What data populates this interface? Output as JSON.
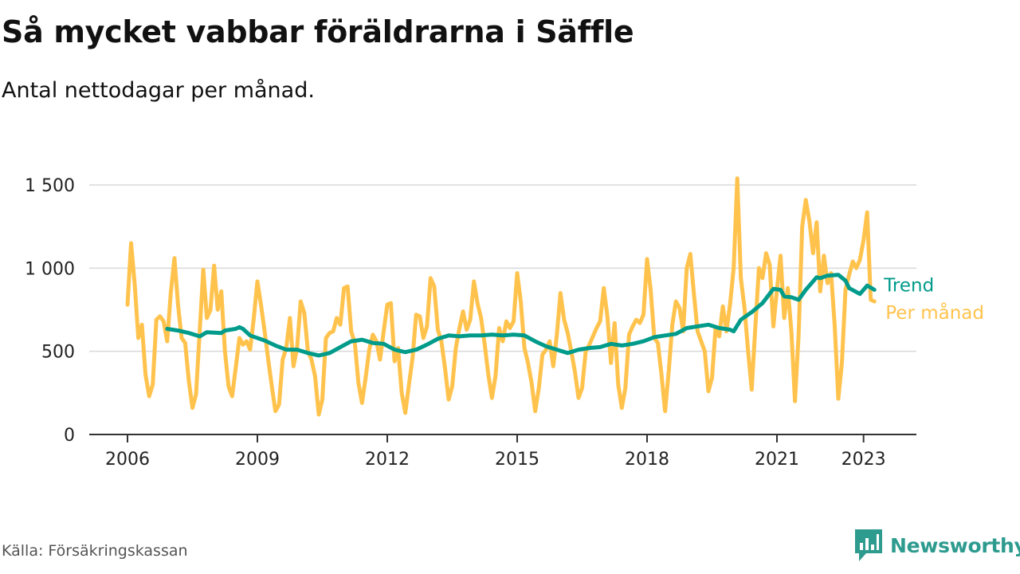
{
  "header": {
    "title": "Så mycket vabbar föräldrarna i Säffle",
    "subtitle": "Antal nettodagar per månad."
  },
  "footer": {
    "source": "Källa: Försäkringskassan",
    "brand": "Newsworthy"
  },
  "colors": {
    "monthly": "#ffc34d",
    "trend": "#009b8a",
    "grid": "#d9d9d9",
    "axis": "#333333",
    "brand": "#2e9b8f"
  },
  "chart_data": {
    "type": "line",
    "title": "Så mycket vabbar föräldrarna i Säffle",
    "subtitle": "Antal nettodagar per månad.",
    "xlim": [
      "2006-01",
      "2023-12"
    ],
    "ylim": [
      0,
      1550
    ],
    "y_ticks": [
      {
        "value": 0,
        "label": "0"
      },
      {
        "value": 500,
        "label": "500"
      },
      {
        "value": 1000,
        "label": "1 000"
      },
      {
        "value": 1500,
        "label": "1 500"
      }
    ],
    "x_ticks": [
      {
        "date": "2006-01",
        "label": "2006"
      },
      {
        "date": "2009-01",
        "label": "2009"
      },
      {
        "date": "2012-01",
        "label": "2012"
      },
      {
        "date": "2015-01",
        "label": "2015"
      },
      {
        "date": "2018-01",
        "label": "2018"
      },
      {
        "date": "2021-01",
        "label": "2021"
      },
      {
        "date": "2023-01",
        "label": "2023"
      }
    ],
    "grid": true,
    "legend": "end-of-line labels",
    "series": [
      {
        "name": "Per månad",
        "color": "#ffc34d",
        "points": [
          [
            "2006-01",
            780
          ],
          [
            "2006-02",
            1150
          ],
          [
            "2006-03",
            900
          ],
          [
            "2006-04",
            580
          ],
          [
            "2006-05",
            660
          ],
          [
            "2006-06",
            360
          ],
          [
            "2006-07",
            230
          ],
          [
            "2006-08",
            300
          ],
          [
            "2006-09",
            690
          ],
          [
            "2006-10",
            710
          ],
          [
            "2006-11",
            680
          ],
          [
            "2006-12",
            560
          ],
          [
            "2007-01",
            850
          ],
          [
            "2007-02",
            1060
          ],
          [
            "2007-03",
            780
          ],
          [
            "2007-04",
            580
          ],
          [
            "2007-05",
            550
          ],
          [
            "2007-06",
            320
          ],
          [
            "2007-07",
            160
          ],
          [
            "2007-08",
            240
          ],
          [
            "2007-09",
            620
          ],
          [
            "2007-10",
            990
          ],
          [
            "2007-11",
            700
          ],
          [
            "2007-12",
            750
          ],
          [
            "2008-01",
            1015
          ],
          [
            "2008-02",
            750
          ],
          [
            "2008-03",
            860
          ],
          [
            "2008-04",
            500
          ],
          [
            "2008-05",
            290
          ],
          [
            "2008-06",
            230
          ],
          [
            "2008-07",
            400
          ],
          [
            "2008-08",
            580
          ],
          [
            "2008-09",
            540
          ],
          [
            "2008-10",
            560
          ],
          [
            "2008-11",
            510
          ],
          [
            "2008-12",
            700
          ],
          [
            "2009-01",
            920
          ],
          [
            "2009-02",
            780
          ],
          [
            "2009-03",
            620
          ],
          [
            "2009-04",
            450
          ],
          [
            "2009-05",
            290
          ],
          [
            "2009-06",
            140
          ],
          [
            "2009-07",
            180
          ],
          [
            "2009-08",
            450
          ],
          [
            "2009-09",
            520
          ],
          [
            "2009-10",
            700
          ],
          [
            "2009-11",
            410
          ],
          [
            "2009-12",
            520
          ],
          [
            "2010-01",
            800
          ],
          [
            "2010-02",
            730
          ],
          [
            "2010-03",
            500
          ],
          [
            "2010-04",
            450
          ],
          [
            "2010-05",
            350
          ],
          [
            "2010-06",
            120
          ],
          [
            "2010-07",
            210
          ],
          [
            "2010-08",
            580
          ],
          [
            "2010-09",
            610
          ],
          [
            "2010-10",
            620
          ],
          [
            "2010-11",
            700
          ],
          [
            "2010-12",
            660
          ],
          [
            "2011-01",
            880
          ],
          [
            "2011-02",
            890
          ],
          [
            "2011-03",
            620
          ],
          [
            "2011-04",
            550
          ],
          [
            "2011-05",
            310
          ],
          [
            "2011-06",
            190
          ],
          [
            "2011-07",
            340
          ],
          [
            "2011-08",
            510
          ],
          [
            "2011-09",
            600
          ],
          [
            "2011-10",
            560
          ],
          [
            "2011-11",
            450
          ],
          [
            "2011-12",
            620
          ],
          [
            "2012-01",
            780
          ],
          [
            "2012-02",
            790
          ],
          [
            "2012-03",
            440
          ],
          [
            "2012-04",
            520
          ],
          [
            "2012-05",
            250
          ],
          [
            "2012-06",
            130
          ],
          [
            "2012-07",
            300
          ],
          [
            "2012-08",
            460
          ],
          [
            "2012-09",
            720
          ],
          [
            "2012-10",
            710
          ],
          [
            "2012-11",
            580
          ],
          [
            "2012-12",
            650
          ],
          [
            "2013-01",
            940
          ],
          [
            "2013-02",
            890
          ],
          [
            "2013-03",
            630
          ],
          [
            "2013-04",
            560
          ],
          [
            "2013-05",
            400
          ],
          [
            "2013-06",
            210
          ],
          [
            "2013-07",
            290
          ],
          [
            "2013-08",
            520
          ],
          [
            "2013-09",
            640
          ],
          [
            "2013-10",
            740
          ],
          [
            "2013-11",
            630
          ],
          [
            "2013-12",
            690
          ],
          [
            "2014-01",
            920
          ],
          [
            "2014-02",
            790
          ],
          [
            "2014-03",
            700
          ],
          [
            "2014-04",
            540
          ],
          [
            "2014-05",
            360
          ],
          [
            "2014-06",
            220
          ],
          [
            "2014-07",
            350
          ],
          [
            "2014-08",
            640
          ],
          [
            "2014-09",
            560
          ],
          [
            "2014-10",
            680
          ],
          [
            "2014-11",
            640
          ],
          [
            "2014-12",
            680
          ],
          [
            "2015-01",
            970
          ],
          [
            "2015-02",
            800
          ],
          [
            "2015-03",
            520
          ],
          [
            "2015-04",
            430
          ],
          [
            "2015-05",
            310
          ],
          [
            "2015-06",
            140
          ],
          [
            "2015-07",
            280
          ],
          [
            "2015-08",
            480
          ],
          [
            "2015-09",
            510
          ],
          [
            "2015-10",
            560
          ],
          [
            "2015-11",
            410
          ],
          [
            "2015-12",
            600
          ],
          [
            "2016-01",
            850
          ],
          [
            "2016-02",
            690
          ],
          [
            "2016-03",
            610
          ],
          [
            "2016-04",
            500
          ],
          [
            "2016-05",
            380
          ],
          [
            "2016-06",
            220
          ],
          [
            "2016-07",
            280
          ],
          [
            "2016-08",
            500
          ],
          [
            "2016-09",
            540
          ],
          [
            "2016-10",
            590
          ],
          [
            "2016-11",
            640
          ],
          [
            "2016-12",
            680
          ],
          [
            "2017-01",
            880
          ],
          [
            "2017-02",
            710
          ],
          [
            "2017-03",
            430
          ],
          [
            "2017-04",
            670
          ],
          [
            "2017-05",
            300
          ],
          [
            "2017-06",
            160
          ],
          [
            "2017-07",
            280
          ],
          [
            "2017-08",
            600
          ],
          [
            "2017-09",
            650
          ],
          [
            "2017-10",
            690
          ],
          [
            "2017-11",
            670
          ],
          [
            "2017-12",
            720
          ],
          [
            "2018-01",
            1055
          ],
          [
            "2018-02",
            870
          ],
          [
            "2018-03",
            580
          ],
          [
            "2018-04",
            550
          ],
          [
            "2018-05",
            360
          ],
          [
            "2018-06",
            140
          ],
          [
            "2018-07",
            380
          ],
          [
            "2018-08",
            660
          ],
          [
            "2018-09",
            800
          ],
          [
            "2018-10",
            760
          ],
          [
            "2018-11",
            620
          ],
          [
            "2018-12",
            1000
          ],
          [
            "2019-01",
            1085
          ],
          [
            "2019-02",
            840
          ],
          [
            "2019-03",
            620
          ],
          [
            "2019-04",
            560
          ],
          [
            "2019-05",
            500
          ],
          [
            "2019-06",
            260
          ],
          [
            "2019-07",
            340
          ],
          [
            "2019-08",
            640
          ],
          [
            "2019-09",
            590
          ],
          [
            "2019-10",
            770
          ],
          [
            "2019-11",
            620
          ],
          [
            "2019-12",
            780
          ],
          [
            "2020-01",
            1000
          ],
          [
            "2020-02",
            1540
          ],
          [
            "2020-03",
            940
          ],
          [
            "2020-04",
            760
          ],
          [
            "2020-05",
            500
          ],
          [
            "2020-06",
            270
          ],
          [
            "2020-07",
            640
          ],
          [
            "2020-08",
            1000
          ],
          [
            "2020-09",
            940
          ],
          [
            "2020-10",
            1090
          ],
          [
            "2020-11",
            1020
          ],
          [
            "2020-12",
            650
          ],
          [
            "2021-01",
            870
          ],
          [
            "2021-02",
            1075
          ],
          [
            "2021-03",
            700
          ],
          [
            "2021-04",
            880
          ],
          [
            "2021-05",
            620
          ],
          [
            "2021-06",
            200
          ],
          [
            "2021-07",
            600
          ],
          [
            "2021-08",
            1250
          ],
          [
            "2021-09",
            1410
          ],
          [
            "2021-10",
            1280
          ],
          [
            "2021-11",
            1090
          ],
          [
            "2021-12",
            1275
          ],
          [
            "2022-01",
            860
          ],
          [
            "2022-02",
            1075
          ],
          [
            "2022-03",
            910
          ],
          [
            "2022-04",
            970
          ],
          [
            "2022-05",
            660
          ],
          [
            "2022-06",
            215
          ],
          [
            "2022-07",
            430
          ],
          [
            "2022-08",
            870
          ],
          [
            "2022-09",
            960
          ],
          [
            "2022-10",
            1040
          ],
          [
            "2022-11",
            1000
          ],
          [
            "2022-12",
            1050
          ],
          [
            "2023-01",
            1170
          ],
          [
            "2023-02",
            1335
          ],
          [
            "2023-03",
            810
          ],
          [
            "2023-04",
            800
          ]
        ]
      },
      {
        "name": "Trend",
        "color": "#009b8a",
        "points": [
          [
            "2006-12",
            635
          ],
          [
            "2007-03",
            625
          ],
          [
            "2007-06",
            610
          ],
          [
            "2007-09",
            590
          ],
          [
            "2007-11",
            615
          ],
          [
            "2008-03",
            610
          ],
          [
            "2008-04",
            625
          ],
          [
            "2008-07",
            635
          ],
          [
            "2008-08",
            645
          ],
          [
            "2008-09",
            635
          ],
          [
            "2008-11",
            595
          ],
          [
            "2009-03",
            565
          ],
          [
            "2009-06",
            535
          ],
          [
            "2009-09",
            510
          ],
          [
            "2009-12",
            510
          ],
          [
            "2010-03",
            490
          ],
          [
            "2010-06",
            475
          ],
          [
            "2010-09",
            490
          ],
          [
            "2010-12",
            525
          ],
          [
            "2011-03",
            560
          ],
          [
            "2011-06",
            570
          ],
          [
            "2011-09",
            550
          ],
          [
            "2011-12",
            545
          ],
          [
            "2012-03",
            510
          ],
          [
            "2012-06",
            495
          ],
          [
            "2012-09",
            510
          ],
          [
            "2012-12",
            540
          ],
          [
            "2013-03",
            575
          ],
          [
            "2013-06",
            595
          ],
          [
            "2013-09",
            590
          ],
          [
            "2013-12",
            595
          ],
          [
            "2014-03",
            595
          ],
          [
            "2014-06",
            600
          ],
          [
            "2014-09",
            595
          ],
          [
            "2014-12",
            600
          ],
          [
            "2015-03",
            595
          ],
          [
            "2015-06",
            560
          ],
          [
            "2015-09",
            530
          ],
          [
            "2015-12",
            510
          ],
          [
            "2016-03",
            490
          ],
          [
            "2016-06",
            510
          ],
          [
            "2016-09",
            520
          ],
          [
            "2016-12",
            525
          ],
          [
            "2017-03",
            545
          ],
          [
            "2017-06",
            535
          ],
          [
            "2017-09",
            545
          ],
          [
            "2017-12",
            560
          ],
          [
            "2018-03",
            585
          ],
          [
            "2018-06",
            595
          ],
          [
            "2018-09",
            605
          ],
          [
            "2018-12",
            640
          ],
          [
            "2019-03",
            650
          ],
          [
            "2019-06",
            660
          ],
          [
            "2019-09",
            640
          ],
          [
            "2019-12",
            630
          ],
          [
            "2020-01",
            620
          ],
          [
            "2020-03",
            690
          ],
          [
            "2020-06",
            735
          ],
          [
            "2020-09",
            790
          ],
          [
            "2020-12",
            875
          ],
          [
            "2021-02",
            870
          ],
          [
            "2021-03",
            830
          ],
          [
            "2021-05",
            825
          ],
          [
            "2021-07",
            810
          ],
          [
            "2021-09",
            870
          ],
          [
            "2021-12",
            945
          ],
          [
            "2022-01",
            940
          ],
          [
            "2022-03",
            955
          ],
          [
            "2022-06",
            960
          ],
          [
            "2022-08",
            925
          ],
          [
            "2022-09",
            880
          ],
          [
            "2022-12",
            845
          ],
          [
            "2023-02",
            895
          ],
          [
            "2023-04",
            870
          ]
        ]
      }
    ]
  }
}
